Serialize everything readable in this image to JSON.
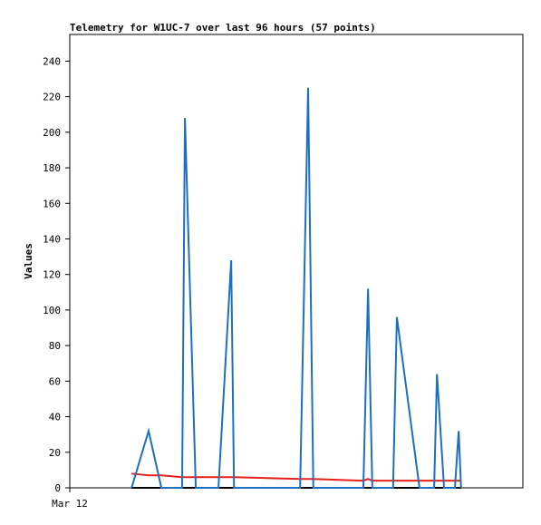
{
  "chart_data": {
    "type": "line",
    "title": "Telemetry for W1UC-7 over last 96 hours (57 points)",
    "y_label": "Values",
    "x": [
      13.1,
      16.7,
      19.4,
      23.8,
      24.4,
      26.7,
      31.5,
      34.2,
      34.8,
      48.8,
      50.5,
      51.6,
      62.2,
      63.2,
      64.1,
      68.5,
      69.3,
      74.1,
      77.2,
      77.8,
      79.3,
      81.6,
      82.4,
      82.9
    ],
    "series": [
      {
        "name": "blue",
        "color": "#1f6fbf",
        "values": [
          0,
          32,
          0,
          0,
          208,
          0,
          0,
          128,
          0,
          0,
          225,
          0,
          0,
          112,
          0,
          0,
          96,
          0,
          0,
          64,
          0,
          0,
          32,
          0
        ]
      },
      {
        "name": "red",
        "color": "#e8201c",
        "values": [
          8,
          7,
          7,
          6,
          6,
          6,
          6,
          6,
          6,
          5,
          5,
          5,
          4,
          5,
          4,
          4,
          4,
          4,
          4,
          4,
          4,
          4,
          4,
          4
        ]
      },
      {
        "name": "black",
        "color": "#000000",
        "values": [
          0,
          0,
          0,
          0,
          0,
          0,
          0,
          0,
          0,
          0,
          0,
          0,
          0,
          0,
          0,
          0,
          0,
          0,
          0,
          0,
          0,
          0,
          0,
          0
        ]
      }
    ],
    "xlim": [
      0,
      96
    ],
    "xticks": [
      {
        "value": 0,
        "label": "Mar 12"
      }
    ],
    "ylim": [
      0,
      255
    ],
    "yticks": [
      0,
      20,
      40,
      60,
      80,
      100,
      120,
      140,
      160,
      180,
      200,
      220,
      240
    ]
  }
}
